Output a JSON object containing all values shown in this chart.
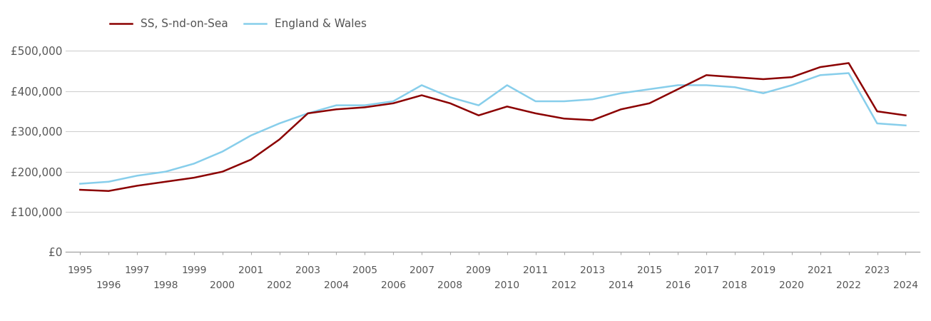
{
  "ss_years": [
    1995,
    1996,
    1997,
    1998,
    1999,
    2000,
    2001,
    2002,
    2003,
    2004,
    2005,
    2006,
    2007,
    2008,
    2009,
    2010,
    2011,
    2012,
    2013,
    2014,
    2015,
    2016,
    2017,
    2018,
    2019,
    2020,
    2021,
    2022,
    2023,
    2024
  ],
  "ss_values": [
    155000,
    152000,
    165000,
    175000,
    185000,
    200000,
    230000,
    280000,
    345000,
    355000,
    360000,
    370000,
    390000,
    370000,
    340000,
    362000,
    345000,
    332000,
    328000,
    355000,
    370000,
    405000,
    440000,
    435000,
    430000,
    435000,
    460000,
    470000,
    350000,
    340000
  ],
  "ew_years": [
    1995,
    1996,
    1997,
    1998,
    1999,
    2000,
    2001,
    2002,
    2003,
    2004,
    2005,
    2006,
    2007,
    2008,
    2009,
    2010,
    2011,
    2012,
    2013,
    2014,
    2015,
    2016,
    2017,
    2018,
    2019,
    2020,
    2021,
    2022,
    2023,
    2024
  ],
  "ew_values": [
    170000,
    175000,
    190000,
    200000,
    220000,
    250000,
    290000,
    320000,
    345000,
    365000,
    365000,
    375000,
    415000,
    385000,
    365000,
    415000,
    375000,
    375000,
    380000,
    395000,
    405000,
    415000,
    415000,
    410000,
    395000,
    415000,
    440000,
    445000,
    320000,
    315000
  ],
  "ss_color": "#8B0000",
  "ew_color": "#87CEEB",
  "ss_label": "SS, S-nd-on-Sea",
  "ew_label": "England & Wales",
  "ylim": [
    0,
    540000
  ],
  "yticks": [
    0,
    100000,
    200000,
    300000,
    400000,
    500000
  ],
  "ytick_labels": [
    "£0",
    "£100,000",
    "£200,000",
    "£300,000",
    "£400,000",
    "£500,000"
  ],
  "xticks_top": [
    1995,
    1997,
    1999,
    2001,
    2003,
    2005,
    2007,
    2009,
    2011,
    2013,
    2015,
    2017,
    2019,
    2021,
    2023
  ],
  "xticks_bottom": [
    1996,
    1998,
    2000,
    2002,
    2004,
    2006,
    2008,
    2010,
    2012,
    2014,
    2016,
    2018,
    2020,
    2022,
    2024
  ],
  "line_width": 1.8,
  "background_color": "#ffffff",
  "grid_color": "#d0d0d0",
  "font_size": 11
}
